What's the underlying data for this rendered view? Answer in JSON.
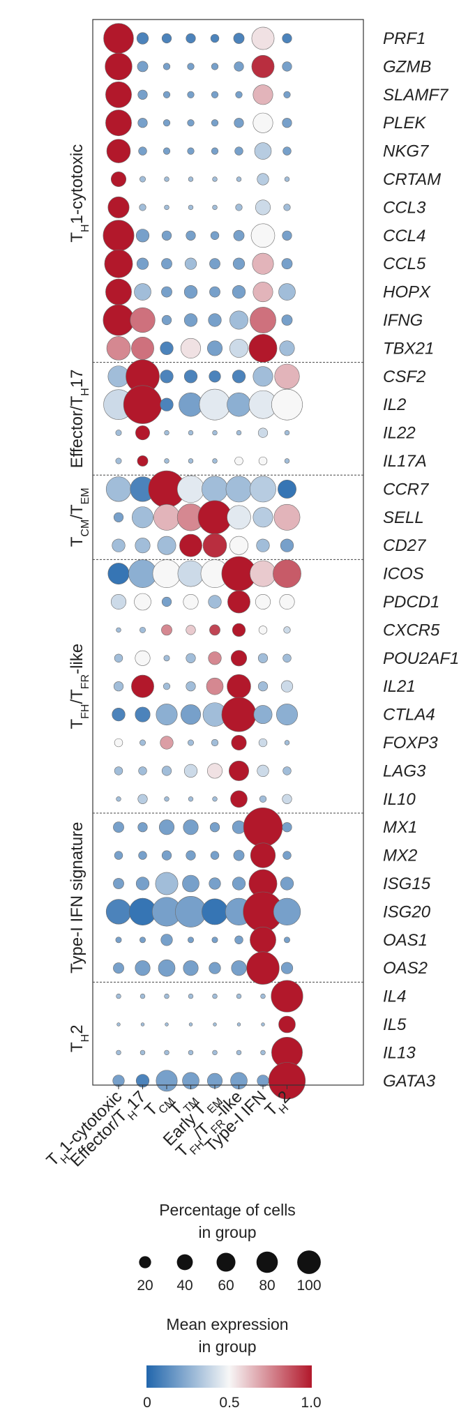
{
  "chart_data": {
    "type": "dotplot",
    "title": "",
    "columns": [
      "TH1-cytotoxic",
      "Effector/TH17",
      "TCM",
      "TTM",
      "Early TEM",
      "TFH/TFR-like",
      "Type-I IFN",
      "TH2"
    ],
    "column_labels": [
      [
        {
          "t": "T"
        },
        {
          "t": "H",
          "sub": true
        },
        {
          "t": "1-cytotoxic"
        }
      ],
      [
        {
          "t": "Effector/T"
        },
        {
          "t": "H",
          "sub": true
        },
        {
          "t": "17"
        }
      ],
      [
        {
          "t": "T"
        },
        {
          "t": "CM",
          "sub": true
        }
      ],
      [
        {
          "t": "T"
        },
        {
          "t": "TM",
          "sub": true
        }
      ],
      [
        {
          "t": "Early T"
        },
        {
          "t": "EM",
          "sub": true
        }
      ],
      [
        {
          "t": "T"
        },
        {
          "t": "FH",
          "sub": true
        },
        {
          "t": "/T"
        },
        {
          "t": "FR",
          "sub": true
        },
        {
          "t": "-like"
        }
      ],
      [
        {
          "t": "Type-I IFN"
        }
      ],
      [
        {
          "t": "T"
        },
        {
          "t": "H",
          "sub": true
        },
        {
          "t": "2"
        }
      ]
    ],
    "groups": [
      {
        "name": "TH1-cytotoxic",
        "label": [
          {
            "t": "T"
          },
          {
            "t": "H",
            "sub": true
          },
          {
            "t": "1-cytotoxic"
          }
        ],
        "genes": [
          "PRF1",
          "GZMB",
          "SLAMF7",
          "PLEK",
          "NKG7",
          "CRTAM",
          "CCL3",
          "CCL4",
          "CCL5",
          "HOPX",
          "IFNG",
          "TBX21"
        ]
      },
      {
        "name": "Effector/TH17",
        "label": [
          {
            "t": "Effector/T"
          },
          {
            "t": "H",
            "sub": true
          },
          {
            "t": "17"
          }
        ],
        "genes": [
          "CSF2",
          "IL2",
          "IL22",
          "IL17A"
        ]
      },
      {
        "name": "TCM/TEM",
        "label": [
          {
            "t": "T"
          },
          {
            "t": "CM",
            "sub": true
          },
          {
            "t": "/T"
          },
          {
            "t": "EM",
            "sub": true
          }
        ],
        "genes": [
          "CCR7",
          "SELL",
          "CD27"
        ]
      },
      {
        "name": "TFH/TFR-like",
        "label": [
          {
            "t": "T"
          },
          {
            "t": "FH",
            "sub": true
          },
          {
            "t": "/T"
          },
          {
            "t": "FR",
            "sub": true
          },
          {
            "t": "-like"
          }
        ],
        "genes": [
          "ICOS",
          "PDCD1",
          "CXCR5",
          "POU2AF1",
          "IL21",
          "CTLA4",
          "FOXP3",
          "LAG3",
          "IL10"
        ]
      },
      {
        "name": "Type-I IFN signature",
        "label": [
          {
            "t": "Type-I IFN signature"
          }
        ],
        "genes": [
          "MX1",
          "MX2",
          "ISG15",
          "ISG20",
          "OAS1",
          "OAS2"
        ]
      },
      {
        "name": "TH2",
        "label": [
          {
            "t": "T"
          },
          {
            "t": "H",
            "sub": true
          },
          {
            "t": "2"
          }
        ],
        "genes": [
          "IL4",
          "IL5",
          "IL13",
          "GATA3"
        ]
      }
    ],
    "percent": {
      "PRF1": [
        80,
        12,
        8,
        8,
        6,
        10,
        45,
        8
      ],
      "GZMB": [
        65,
        10,
        4,
        4,
        4,
        8,
        45,
        8
      ],
      "SLAMF7": [
        60,
        8,
        4,
        4,
        4,
        4,
        35,
        4
      ],
      "PLEK": [
        60,
        8,
        4,
        4,
        4,
        8,
        35,
        8
      ],
      "NKG7": [
        50,
        6,
        4,
        4,
        4,
        6,
        25,
        6
      ],
      "CRTAM": [
        20,
        3,
        2,
        2,
        2,
        2,
        12,
        2
      ],
      "CCL3": [
        40,
        4,
        2,
        2,
        2,
        4,
        20,
        4
      ],
      "CCL4": [
        85,
        15,
        8,
        8,
        6,
        10,
        50,
        8
      ],
      "CCL5": [
        70,
        12,
        10,
        12,
        10,
        12,
        40,
        10
      ],
      "HOPX": [
        60,
        25,
        10,
        15,
        10,
        15,
        35,
        25
      ],
      "IFNG": [
        85,
        55,
        8,
        15,
        15,
        30,
        60,
        10
      ],
      "TBX21": [
        50,
        45,
        15,
        35,
        20,
        30,
        70,
        20
      ],
      "CSF2": [
        40,
        100,
        15,
        15,
        12,
        15,
        35,
        55
      ],
      "IL2": [
        80,
        130,
        15,
        50,
        85,
        50,
        70,
        85
      ],
      "IL22": [
        3,
        18,
        2,
        2,
        2,
        2,
        8,
        2
      ],
      "IL17A": [
        3,
        10,
        2,
        2,
        2,
        6,
        6,
        2
      ],
      "CCR7": [
        55,
        55,
        120,
        65,
        60,
        60,
        60,
        30
      ],
      "SELL": [
        8,
        40,
        60,
        65,
        100,
        50,
        35,
        60
      ],
      "CD27": [
        15,
        20,
        30,
        45,
        50,
        30,
        15,
        15
      ],
      "ICOS": [
        40,
        70,
        70,
        60,
        70,
        105,
        60,
        70
      ],
      "PDCD1": [
        20,
        25,
        8,
        20,
        15,
        45,
        20,
        20
      ],
      "CXCR5": [
        2,
        3,
        10,
        8,
        10,
        15,
        6,
        4
      ],
      "POU2AF1": [
        6,
        20,
        3,
        8,
        15,
        22,
        8,
        6
      ],
      "IL21": [
        8,
        45,
        4,
        8,
        25,
        50,
        8,
        12
      ],
      "CTLA4": [
        15,
        20,
        40,
        35,
        50,
        105,
        30,
        40
      ],
      "FOXP3": [
        6,
        3,
        15,
        3,
        4,
        20,
        6,
        2
      ],
      "LAG3": [
        6,
        6,
        8,
        15,
        20,
        35,
        12,
        6
      ],
      "IL10": [
        2,
        8,
        2,
        2,
        2,
        25,
        4,
        8
      ],
      "MX1": [
        10,
        8,
        20,
        20,
        8,
        15,
        135,
        8
      ],
      "MX2": [
        6,
        6,
        8,
        8,
        6,
        10,
        55,
        6
      ],
      "ISG15": [
        10,
        15,
        45,
        25,
        12,
        15,
        70,
        15
      ],
      "ISG20": [
        55,
        65,
        75,
        85,
        60,
        65,
        140,
        65
      ],
      "OAS1": [
        3,
        3,
        12,
        3,
        3,
        6,
        60,
        3
      ],
      "OAS2": [
        10,
        20,
        25,
        20,
        12,
        20,
        95,
        12
      ],
      "IL4": [
        2,
        2,
        2,
        2,
        2,
        2,
        2,
        90
      ],
      "IL5": [
        1,
        1,
        1,
        1,
        1,
        1,
        1,
        25
      ],
      "IL13": [
        2,
        2,
        2,
        2,
        2,
        2,
        2,
        85
      ],
      "GATA3": [
        12,
        15,
        40,
        25,
        20,
        25,
        12,
        120
      ]
    },
    "expression": {
      "PRF1": [
        1.0,
        0.1,
        0.1,
        0.1,
        0.1,
        0.1,
        0.55,
        0.1
      ],
      "GZMB": [
        1.0,
        0.2,
        0.2,
        0.2,
        0.2,
        0.2,
        0.95,
        0.2
      ],
      "SLAMF7": [
        1.0,
        0.2,
        0.2,
        0.2,
        0.2,
        0.2,
        0.65,
        0.2
      ],
      "PLEK": [
        1.0,
        0.2,
        0.2,
        0.2,
        0.2,
        0.2,
        0.5,
        0.2
      ],
      "NKG7": [
        1.0,
        0.2,
        0.2,
        0.2,
        0.2,
        0.2,
        0.35,
        0.2
      ],
      "CRTAM": [
        1.0,
        0.3,
        0.3,
        0.3,
        0.3,
        0.3,
        0.35,
        0.3
      ],
      "CCL3": [
        1.0,
        0.3,
        0.3,
        0.3,
        0.3,
        0.3,
        0.4,
        0.3
      ],
      "CCL4": [
        1.0,
        0.2,
        0.2,
        0.2,
        0.2,
        0.2,
        0.5,
        0.2
      ],
      "CCL5": [
        1.0,
        0.2,
        0.2,
        0.3,
        0.2,
        0.2,
        0.65,
        0.2
      ],
      "HOPX": [
        1.0,
        0.3,
        0.2,
        0.2,
        0.2,
        0.2,
        0.65,
        0.3
      ],
      "IFNG": [
        1.0,
        0.8,
        0.2,
        0.2,
        0.2,
        0.3,
        0.8,
        0.2
      ],
      "TBX21": [
        0.75,
        0.8,
        0.1,
        0.55,
        0.2,
        0.4,
        1.0,
        0.3
      ],
      "CSF2": [
        0.3,
        1.0,
        0.1,
        0.1,
        0.1,
        0.1,
        0.3,
        0.65
      ],
      "IL2": [
        0.4,
        1.0,
        0.1,
        0.2,
        0.45,
        0.25,
        0.45,
        0.5
      ],
      "IL22": [
        0.3,
        1.0,
        0.3,
        0.3,
        0.3,
        0.3,
        0.4,
        0.3
      ],
      "IL17A": [
        0.3,
        1.0,
        0.3,
        0.3,
        0.3,
        0.5,
        0.5,
        0.3
      ],
      "CCR7": [
        0.3,
        0.1,
        1.0,
        0.45,
        0.3,
        0.3,
        0.35,
        0.05
      ],
      "SELL": [
        0.2,
        0.3,
        0.65,
        0.75,
        1.0,
        0.45,
        0.35,
        0.65
      ],
      "CD27": [
        0.3,
        0.3,
        0.3,
        1.0,
        0.95,
        0.5,
        0.3,
        0.2
      ],
      "ICOS": [
        0.05,
        0.25,
        0.5,
        0.4,
        0.5,
        1.0,
        0.6,
        0.85
      ],
      "PDCD1": [
        0.4,
        0.5,
        0.2,
        0.5,
        0.3,
        1.0,
        0.5,
        0.5
      ],
      "CXCR5": [
        0.3,
        0.3,
        0.75,
        0.6,
        0.9,
        1.0,
        0.5,
        0.4
      ],
      "POU2AF1": [
        0.3,
        0.5,
        0.3,
        0.3,
        0.75,
        1.0,
        0.3,
        0.3
      ],
      "IL21": [
        0.3,
        1.0,
        0.3,
        0.3,
        0.75,
        1.0,
        0.3,
        0.4
      ],
      "CTLA4": [
        0.1,
        0.1,
        0.25,
        0.2,
        0.3,
        1.0,
        0.25,
        0.25
      ],
      "FOXP3": [
        0.5,
        0.3,
        0.7,
        0.3,
        0.3,
        1.0,
        0.4,
        0.3
      ],
      "LAG3": [
        0.3,
        0.3,
        0.3,
        0.4,
        0.55,
        1.0,
        0.4,
        0.3
      ],
      "IL10": [
        0.3,
        0.35,
        0.3,
        0.3,
        0.3,
        1.0,
        0.3,
        0.4
      ],
      "MX1": [
        0.2,
        0.2,
        0.2,
        0.2,
        0.2,
        0.2,
        1.0,
        0.2
      ],
      "MX2": [
        0.2,
        0.2,
        0.2,
        0.2,
        0.2,
        0.2,
        1.0,
        0.2
      ],
      "ISG15": [
        0.2,
        0.2,
        0.3,
        0.2,
        0.2,
        0.2,
        1.0,
        0.2
      ],
      "ISG20": [
        0.1,
        0.05,
        0.2,
        0.2,
        0.05,
        0.2,
        1.0,
        0.2
      ],
      "OAS1": [
        0.2,
        0.2,
        0.2,
        0.2,
        0.2,
        0.2,
        1.0,
        0.2
      ],
      "OAS2": [
        0.2,
        0.2,
        0.2,
        0.2,
        0.2,
        0.2,
        1.0,
        0.2
      ],
      "IL4": [
        0.3,
        0.3,
        0.3,
        0.3,
        0.3,
        0.3,
        0.3,
        1.0
      ],
      "IL5": [
        0.3,
        0.3,
        0.3,
        0.3,
        0.3,
        0.3,
        0.3,
        1.0
      ],
      "IL13": [
        0.3,
        0.3,
        0.3,
        0.3,
        0.3,
        0.3,
        0.3,
        1.0
      ],
      "GATA3": [
        0.2,
        0.1,
        0.2,
        0.2,
        0.2,
        0.2,
        0.2,
        1.0
      ]
    },
    "size_legend": {
      "title_line1": "Percentage of cells",
      "title_line2": "in group",
      "values": [
        20,
        40,
        60,
        80,
        100
      ],
      "labels": [
        "20",
        "40",
        "60",
        "80",
        "100"
      ]
    },
    "color_legend": {
      "title_line1": "Mean expression",
      "title_line2": "in group",
      "ticks": [
        "0",
        "0.5",
        "1.0"
      ],
      "low_color": "#2166ac",
      "mid_color": "#f7f7f7",
      "high_color": "#b2182b",
      "range": [
        0,
        1
      ]
    },
    "colors": {
      "dot_outline": "#6b6b6b",
      "frame": "#333333",
      "separator": "#444444",
      "legend_dot": "#111111"
    }
  }
}
